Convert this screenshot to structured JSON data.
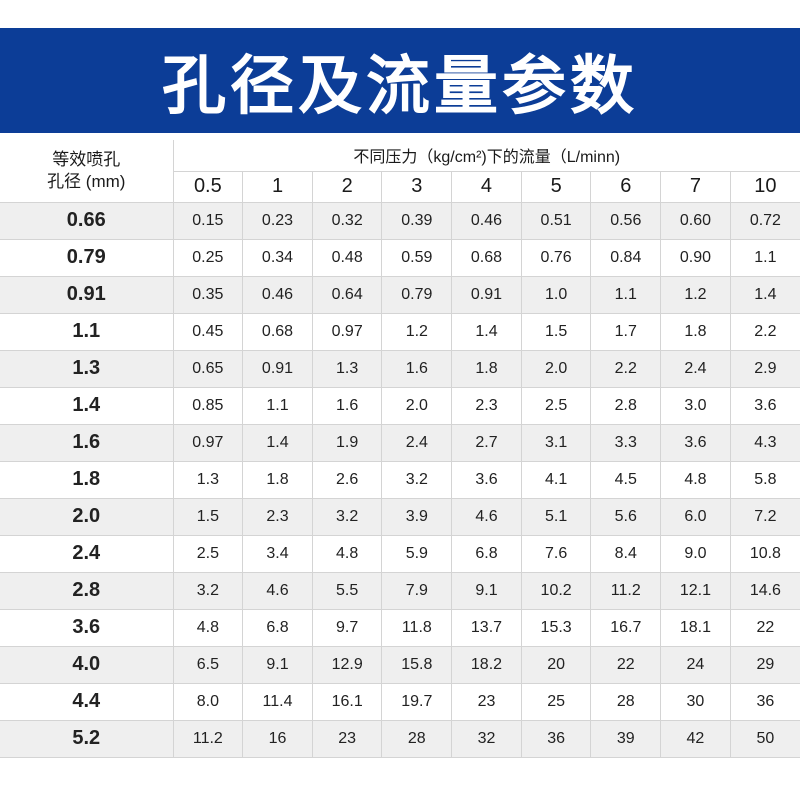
{
  "title": "孔径及流量参数",
  "colors": {
    "banner": "#0c3d97",
    "stripe": "#efefef"
  },
  "table": {
    "corner_line1": "等效喷孔",
    "corner_line2": "孔径 (mm)",
    "group_header": "不同压力（kg/cm²)下的流量（L/minn)",
    "pressures": [
      "0.5",
      "1",
      "2",
      "3",
      "4",
      "5",
      "6",
      "7",
      "10"
    ],
    "rows": [
      {
        "diameter": "0.66",
        "values": [
          "0.15",
          "0.23",
          "0.32",
          "0.39",
          "0.46",
          "0.51",
          "0.56",
          "0.60",
          "0.72"
        ]
      },
      {
        "diameter": "0.79",
        "values": [
          "0.25",
          "0.34",
          "0.48",
          "0.59",
          "0.68",
          "0.76",
          "0.84",
          "0.90",
          "1.1"
        ]
      },
      {
        "diameter": "0.91",
        "values": [
          "0.35",
          "0.46",
          "0.64",
          "0.79",
          "0.91",
          "1.0",
          "1.1",
          "1.2",
          "1.4"
        ]
      },
      {
        "diameter": "1.1",
        "values": [
          "0.45",
          "0.68",
          "0.97",
          "1.2",
          "1.4",
          "1.5",
          "1.7",
          "1.8",
          "2.2"
        ]
      },
      {
        "diameter": "1.3",
        "values": [
          "0.65",
          "0.91",
          "1.3",
          "1.6",
          "1.8",
          "2.0",
          "2.2",
          "2.4",
          "2.9"
        ]
      },
      {
        "diameter": "1.4",
        "values": [
          "0.85",
          "1.1",
          "1.6",
          "2.0",
          "2.3",
          "2.5",
          "2.8",
          "3.0",
          "3.6"
        ]
      },
      {
        "diameter": "1.6",
        "values": [
          "0.97",
          "1.4",
          "1.9",
          "2.4",
          "2.7",
          "3.1",
          "3.3",
          "3.6",
          "4.3"
        ]
      },
      {
        "diameter": "1.8",
        "values": [
          "1.3",
          "1.8",
          "2.6",
          "3.2",
          "3.6",
          "4.1",
          "4.5",
          "4.8",
          "5.8"
        ]
      },
      {
        "diameter": "2.0",
        "values": [
          "1.5",
          "2.3",
          "3.2",
          "3.9",
          "4.6",
          "5.1",
          "5.6",
          "6.0",
          "7.2"
        ]
      },
      {
        "diameter": "2.4",
        "values": [
          "2.5",
          "3.4",
          "4.8",
          "5.9",
          "6.8",
          "7.6",
          "8.4",
          "9.0",
          "10.8"
        ]
      },
      {
        "diameter": "2.8",
        "values": [
          "3.2",
          "4.6",
          "5.5",
          "7.9",
          "9.1",
          "10.2",
          "11.2",
          "12.1",
          "14.6"
        ]
      },
      {
        "diameter": "3.6",
        "values": [
          "4.8",
          "6.8",
          "9.7",
          "11.8",
          "13.7",
          "15.3",
          "16.7",
          "18.1",
          "22"
        ]
      },
      {
        "diameter": "4.0",
        "values": [
          "6.5",
          "9.1",
          "12.9",
          "15.8",
          "18.2",
          "20",
          "22",
          "24",
          "29"
        ]
      },
      {
        "diameter": "4.4",
        "values": [
          "8.0",
          "11.4",
          "16.1",
          "19.7",
          "23",
          "25",
          "28",
          "30",
          "36"
        ]
      },
      {
        "diameter": "5.2",
        "values": [
          "11.2",
          "16",
          "23",
          "28",
          "32",
          "36",
          "39",
          "42",
          "50"
        ]
      }
    ]
  }
}
